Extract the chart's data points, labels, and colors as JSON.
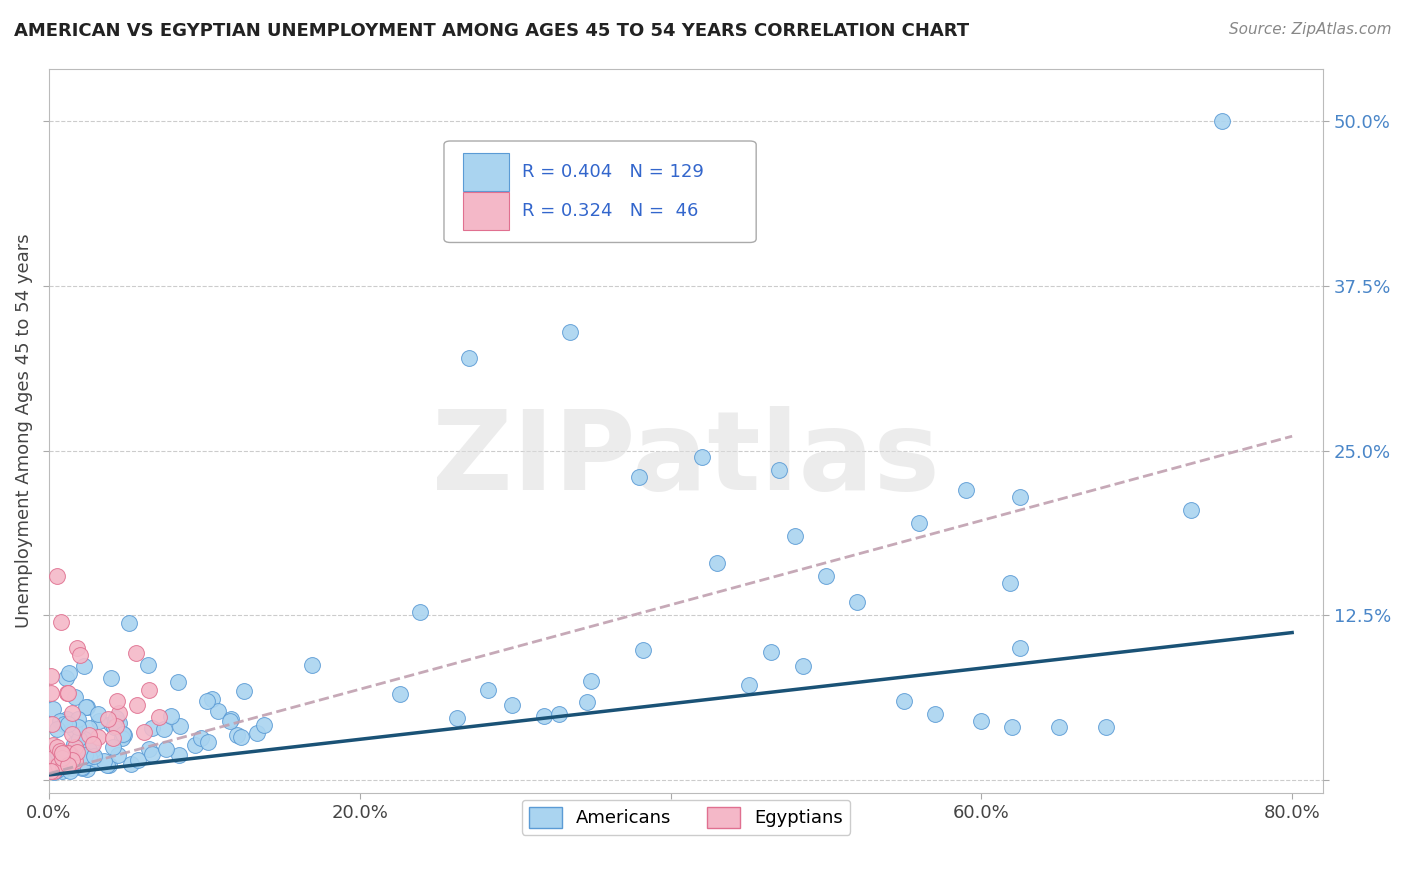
{
  "title": "AMERICAN VS EGYPTIAN UNEMPLOYMENT AMONG AGES 45 TO 54 YEARS CORRELATION CHART",
  "source": "Source: ZipAtlas.com",
  "ylabel": "Unemployment Among Ages 45 to 54 years",
  "xlim": [
    0.0,
    0.82
  ],
  "ylim": [
    -0.01,
    0.54
  ],
  "xticks": [
    0.0,
    0.2,
    0.4,
    0.6,
    0.8
  ],
  "xtick_labels": [
    "0.0%",
    "20.0%",
    "40.0%",
    "60.0%",
    "80.0%"
  ],
  "ytick_positions": [
    0.0,
    0.125,
    0.25,
    0.375,
    0.5
  ],
  "ytick_labels": [
    "",
    "12.5%",
    "25.0%",
    "37.5%",
    "50.0%"
  ],
  "legend_american_R": 0.404,
  "legend_american_N": 129,
  "legend_egyptian_R": 0.324,
  "legend_egyptian_N": 46,
  "watermark": "ZIPatlas",
  "american_fill_color": "#aad4f0",
  "american_edge_color": "#5b9bd5",
  "egyptian_fill_color": "#f4b8c8",
  "egyptian_edge_color": "#e07090",
  "american_line_color": "#1a5276",
  "egyptian_line_color": "#c0a0b0",
  "background_color": "#ffffff",
  "grid_color": "#cccccc",
  "title_color": "#222222",
  "source_color": "#888888",
  "ylabel_color": "#444444",
  "ytick_color": "#4a86c8",
  "xtick_color": "#444444"
}
